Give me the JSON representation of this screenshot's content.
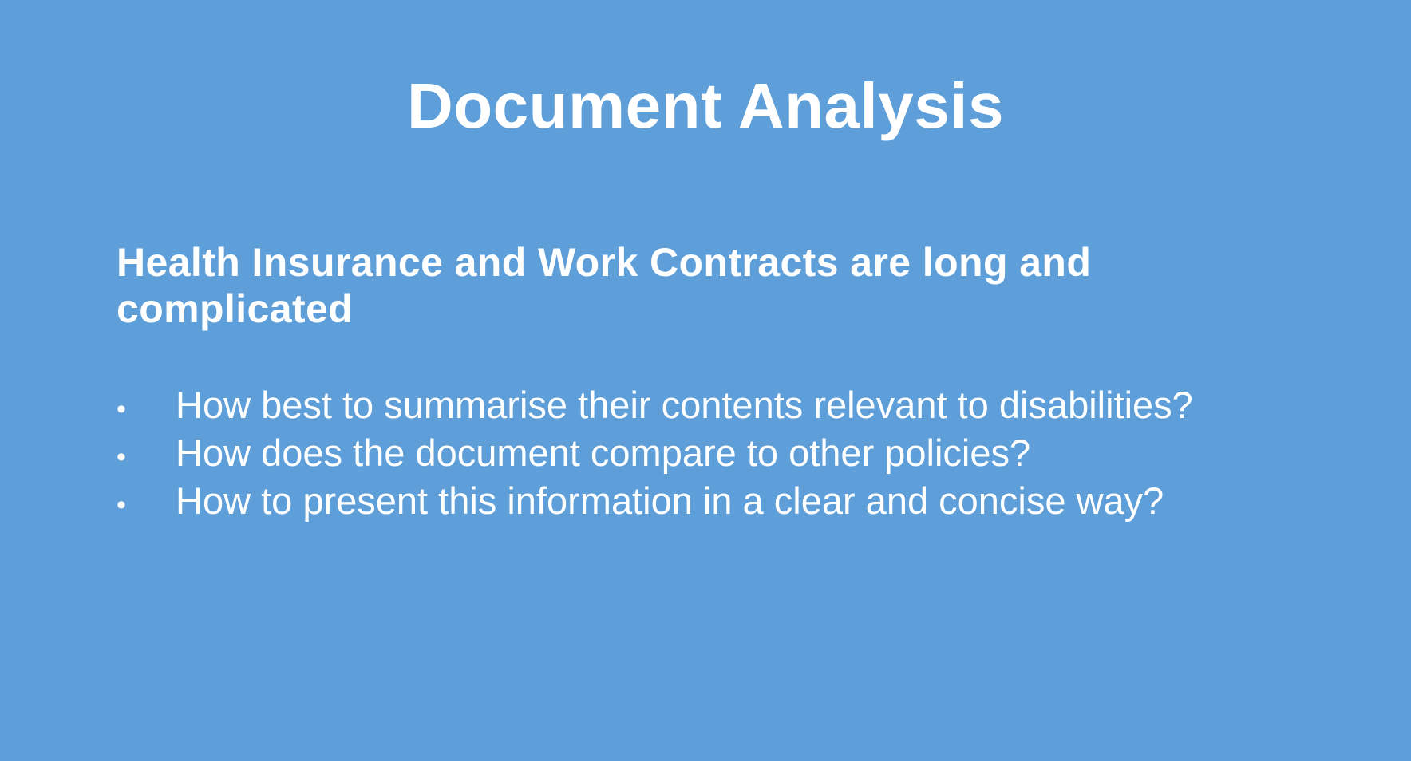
{
  "slide": {
    "title": "Document Analysis",
    "subtitle": "Health Insurance and Work Contracts are long and complicated",
    "bullets": [
      "How best to summarise their contents relevant to disabilities?",
      "How does the document compare to other policies?",
      "How to present this information in a clear and concise way?"
    ],
    "bullet_symbol": "•",
    "colors": {
      "background": "#5f9fd9",
      "text": "#ffffff"
    }
  }
}
